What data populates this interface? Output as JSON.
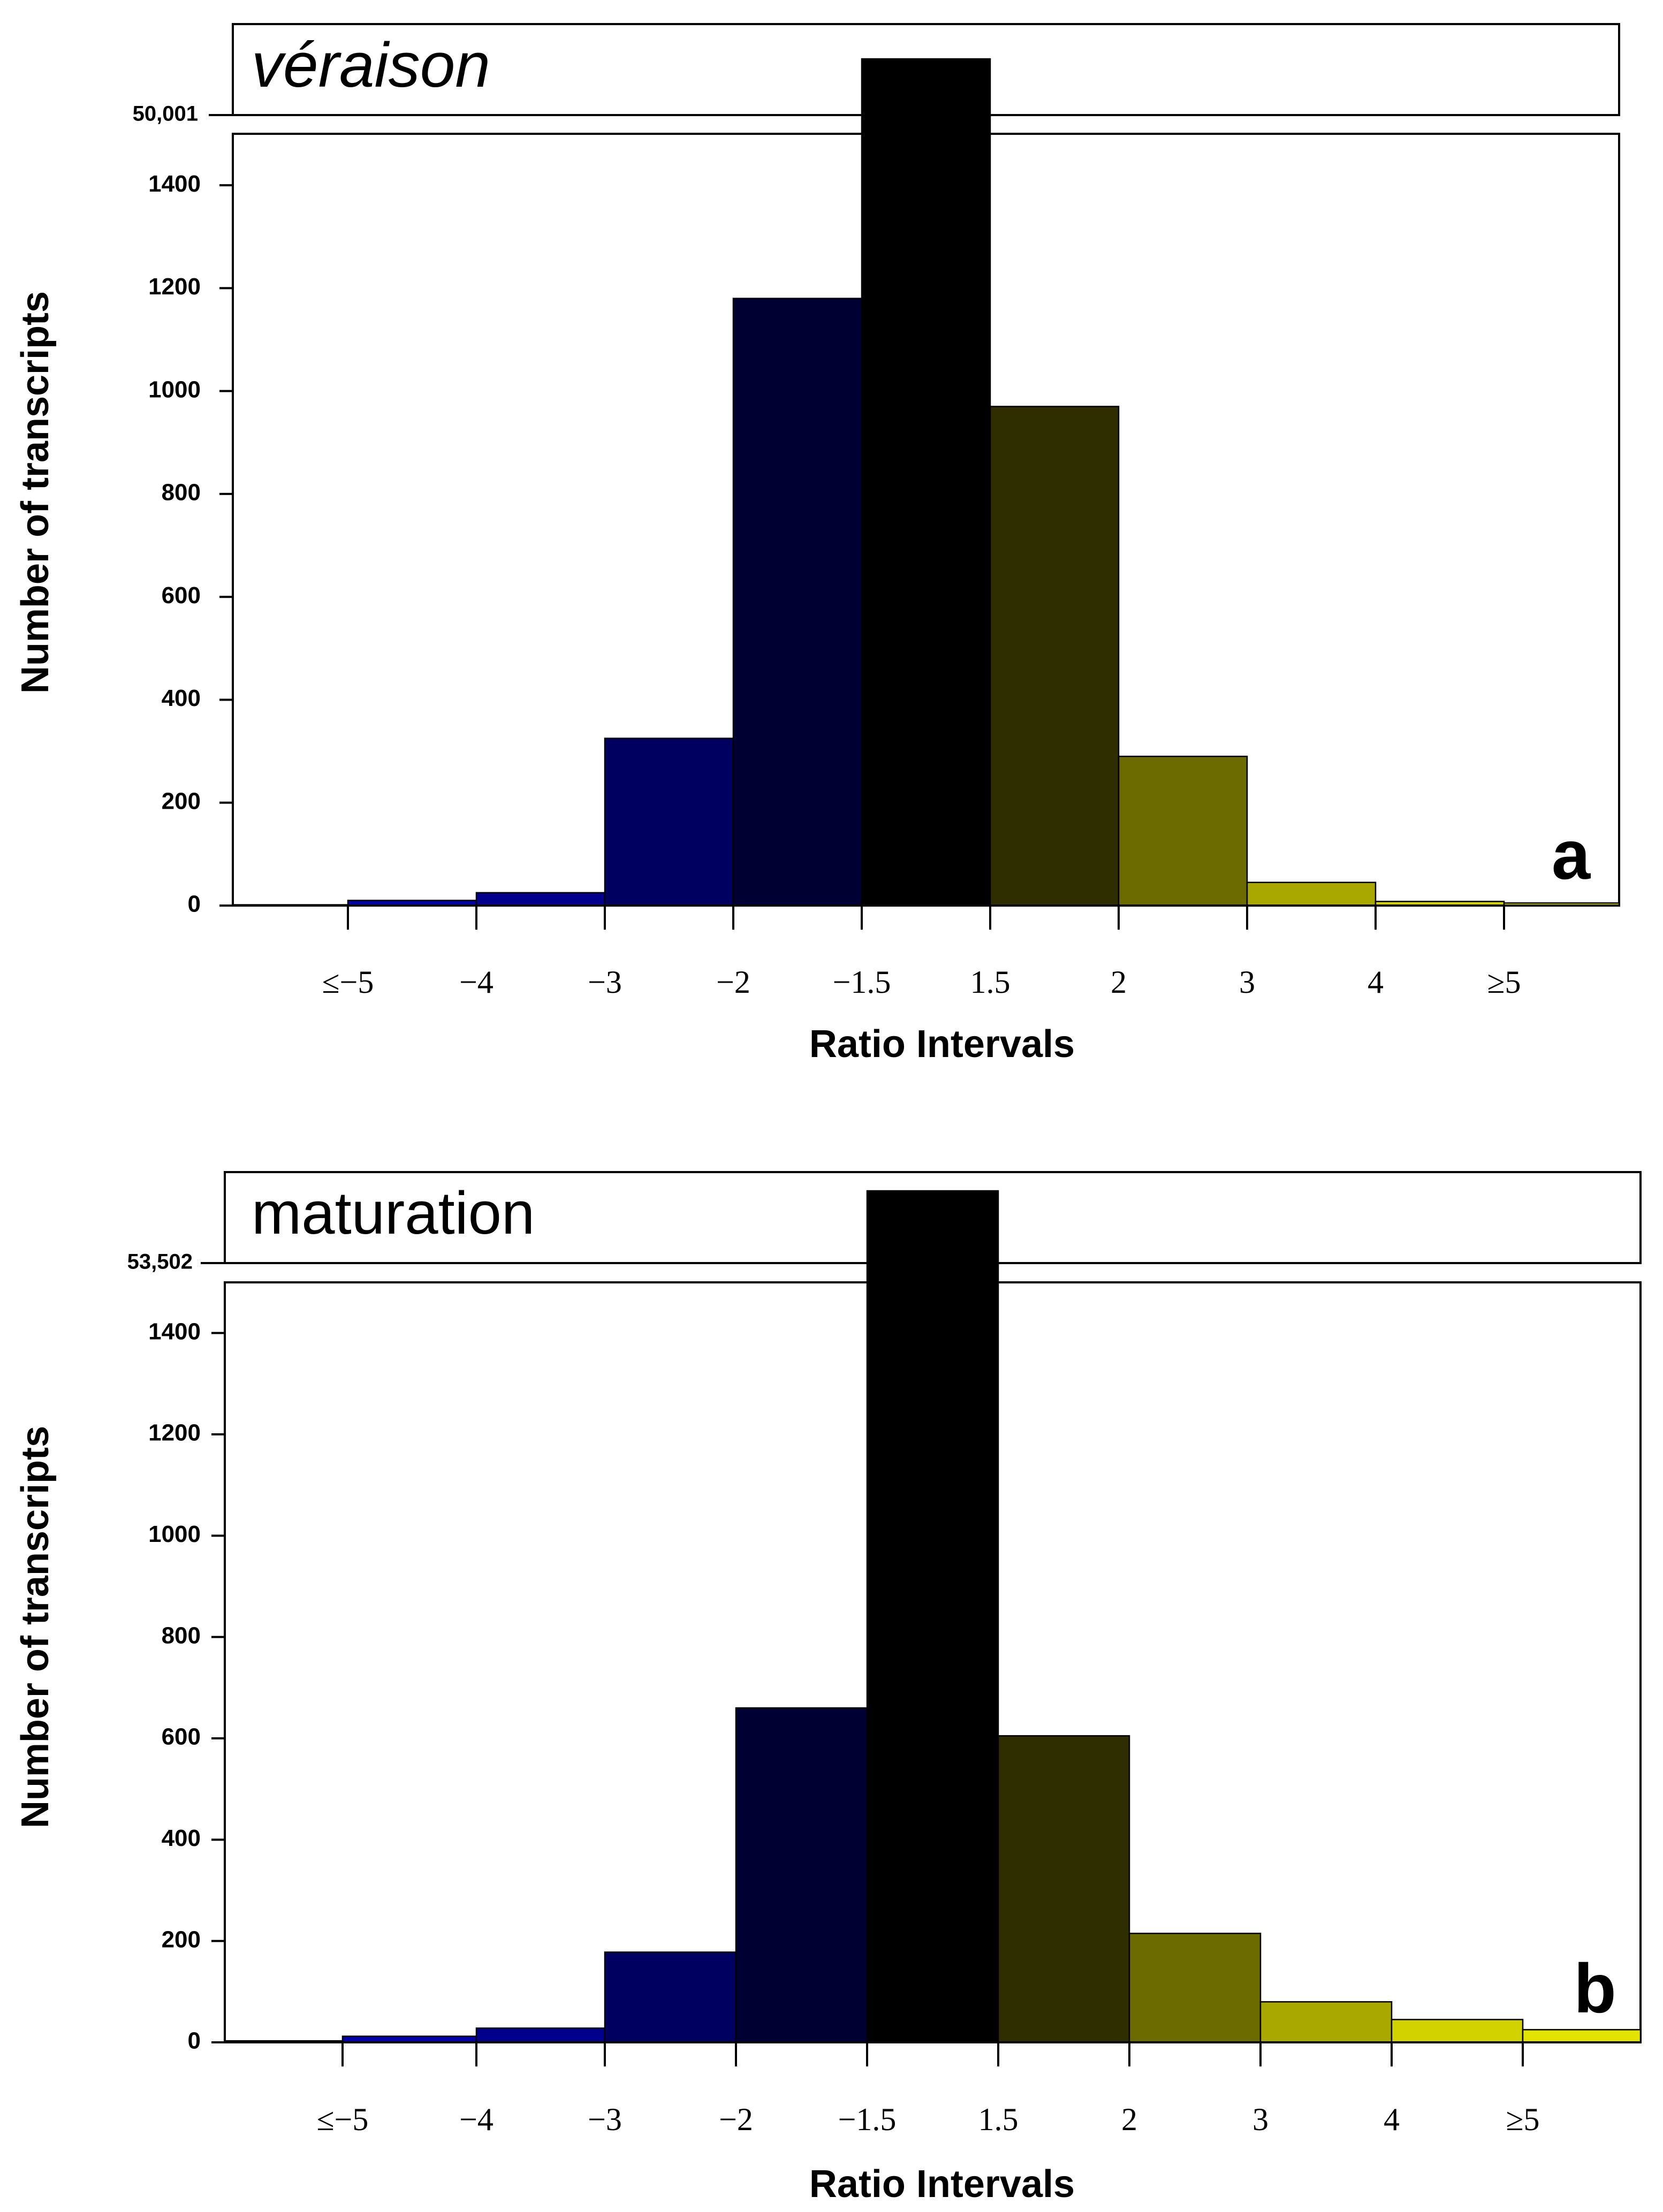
{
  "figure": {
    "panels": [
      {
        "id": "a",
        "title": "véraison",
        "panel_label": "a",
        "break_label": "50,001"
      },
      {
        "id": "b",
        "title": "maturation",
        "panel_label": "b",
        "break_label": "53,502"
      }
    ]
  },
  "chart_data": [
    {
      "type": "bar",
      "title": "véraison",
      "xlabel": "Ratio Intervals",
      "ylabel": "Number of transcripts",
      "yticks": [
        0,
        200,
        400,
        600,
        800,
        1000,
        1200,
        1400
      ],
      "ylim": [
        0,
        1500
      ],
      "broken_axis_value": 50001,
      "x_tick_labels": [
        "≤−5",
        "−4",
        "−3",
        "−2",
        "−1.5",
        "1.5",
        "2",
        "3",
        "4",
        "≥5"
      ],
      "bins": [
        "<−5",
        "−5 to −4",
        "−4 to −3",
        "−3 to −2",
        "−2 to −1.5",
        "−1.5 to 1.5",
        "1.5 to 2",
        "2 to 3",
        "3 to 4",
        "4 to 5",
        ">5"
      ],
      "values": [
        0,
        10,
        25,
        325,
        1180,
        50001,
        970,
        290,
        45,
        8,
        5
      ],
      "colors": [
        "#00009a",
        "#0000a8",
        "#00008c",
        "#000060",
        "#000033",
        "#000000",
        "#2e2e00",
        "#6b6b00",
        "#a8a800",
        "#d2d200",
        "#e3e300"
      ],
      "grid": false,
      "legend": "none"
    },
    {
      "type": "bar",
      "title": "maturation",
      "xlabel": "Ratio Intervals",
      "ylabel": "Number of transcripts",
      "yticks": [
        0,
        200,
        400,
        600,
        800,
        1000,
        1200,
        1400
      ],
      "ylim": [
        0,
        1500
      ],
      "broken_axis_value": 53502,
      "x_tick_labels": [
        "≤−5",
        "−4",
        "−3",
        "−2",
        "−1.5",
        "1.5",
        "2",
        "3",
        "4",
        "≥5"
      ],
      "bins": [
        "<−5",
        "−5 to −4",
        "−4 to −3",
        "−3 to −2",
        "−2 to −1.5",
        "−1.5 to 1.5",
        "1.5 to 2",
        "2 to 3",
        "3 to 4",
        "4 to 5",
        ">5"
      ],
      "values": [
        3,
        12,
        28,
        178,
        660,
        53502,
        605,
        215,
        80,
        45,
        25
      ],
      "colors": [
        "#00009a",
        "#0000a8",
        "#00008c",
        "#000060",
        "#000033",
        "#000000",
        "#2e2e00",
        "#6b6b00",
        "#a8a800",
        "#d2d200",
        "#e3e300"
      ],
      "grid": false,
      "legend": "none"
    }
  ]
}
